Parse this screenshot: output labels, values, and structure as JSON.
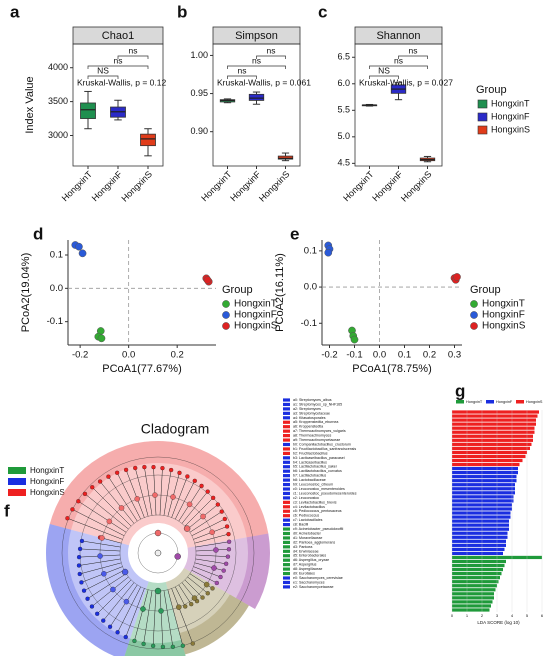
{
  "chart_data": [
    {
      "type": "box",
      "label": "a",
      "title": "Chao1",
      "ylabel": "Index Value",
      "categories": [
        "HongxinT",
        "HongxinF",
        "HongxinS"
      ],
      "colors": [
        "#1f8f4f",
        "#2b2bc8",
        "#e03c1a"
      ],
      "boxes": [
        {
          "min": 3100,
          "q1": 3250,
          "median": 3380,
          "q3": 3480,
          "max": 3650
        },
        {
          "min": 3230,
          "q1": 3270,
          "median": 3350,
          "q3": 3420,
          "max": 3520
        },
        {
          "min": 2700,
          "q1": 2850,
          "median": 2950,
          "q3": 3020,
          "max": 3100
        }
      ],
      "ylim": [
        2550,
        4350
      ],
      "yticks": [
        3000,
        3500,
        4000
      ],
      "brackets": [
        "ns",
        "ns",
        "NS"
      ],
      "test": "Kruskal-Wallis, p = 0.12"
    },
    {
      "type": "box",
      "label": "b",
      "title": "Simpson",
      "categories": [
        "HongxinT",
        "HongxinF",
        "HongxinS"
      ],
      "colors": [
        "#1f8f4f",
        "#2b2bc8",
        "#e03c1a"
      ],
      "boxes": [
        {
          "min": 0.938,
          "q1": 0.939,
          "median": 0.941,
          "q3": 0.942,
          "max": 0.943
        },
        {
          "min": 0.936,
          "q1": 0.941,
          "median": 0.944,
          "q3": 0.949,
          "max": 0.952
        },
        {
          "min": 0.862,
          "q1": 0.864,
          "median": 0.865,
          "q3": 0.868,
          "max": 0.872
        }
      ],
      "ylim": [
        0.855,
        1.015
      ],
      "yticks": [
        {
          "value": 0.9,
          "label": "0.90"
        },
        {
          "value": 0.95,
          "label": "0.95"
        },
        {
          "value": 1,
          "label": "1.00"
        }
      ],
      "brackets": [
        "ns",
        "ns",
        "ns"
      ],
      "test": "Kruskal-Wallis, p = 0.061"
    },
    {
      "type": "box",
      "label": "c",
      "title": "Shannon",
      "categories": [
        "HongxinT",
        "HongxinF",
        "HongxinS"
      ],
      "colors": [
        "#1f8f4f",
        "#2b2bc8",
        "#e03c1a"
      ],
      "boxes": [
        {
          "min": 5.58,
          "q1": 5.59,
          "median": 5.6,
          "q3": 5.6,
          "max": 5.61
        },
        {
          "min": 5.7,
          "q1": 5.82,
          "median": 5.9,
          "q3": 5.98,
          "max": 6.02
        },
        {
          "min": 4.53,
          "q1": 4.55,
          "median": 4.57,
          "q3": 4.6,
          "max": 4.63
        }
      ],
      "ylim": [
        4.45,
        6.75
      ],
      "yticks": [
        4.5,
        {
          "value": 5,
          "label": "5.0"
        },
        5.5,
        {
          "value": 6,
          "label": "6.0"
        },
        6.5
      ],
      "brackets": [
        "ns",
        "ns",
        "NS"
      ],
      "test": "Kruskal-Wallis, p = 0.027",
      "legend_title": "Group"
    },
    {
      "type": "scatter",
      "label": "d",
      "xlabel": "PCoA1(77.67%)",
      "ylabel": "PCoA2(19.04%)",
      "legend_title": "Group",
      "series": [
        {
          "name": "HongxinT",
          "color": "#33aa33",
          "x": [
            -0.115,
            -0.125,
            -0.112
          ],
          "y": [
            -0.128,
            -0.145,
            -0.15
          ]
        },
        {
          "name": "HongxinF",
          "color": "#2a5ad8",
          "x": [
            -0.22,
            -0.205,
            -0.19
          ],
          "y": [
            0.13,
            0.125,
            0.105
          ]
        },
        {
          "name": "HongxinS",
          "color": "#dd2222",
          "x": [
            0.32,
            0.33,
            0.325
          ],
          "y": [
            0.03,
            0.02,
            0.025
          ]
        }
      ],
      "xlim": [
        -0.25,
        0.36
      ],
      "ylim": [
        -0.17,
        0.145
      ],
      "xticks": [
        -0.2,
        {
          "value": 0,
          "label": "0.0"
        },
        0.2
      ],
      "yticks": [
        -0.1,
        {
          "value": 0,
          "label": "0.0"
        },
        0.1
      ]
    },
    {
      "type": "scatter",
      "label": "e",
      "xlabel": "PCoA1(78.75%)",
      "ylabel": "PCoA2(16.11%)",
      "legend_title": "Group",
      "series": [
        {
          "name": "HongxinT",
          "color": "#33aa33",
          "x": [
            -0.11,
            -0.105,
            -0.1
          ],
          "y": [
            -0.12,
            -0.135,
            -0.145
          ]
        },
        {
          "name": "HongxinF",
          "color": "#2a5ad8",
          "x": [
            -0.205,
            -0.2,
            -0.205
          ],
          "y": [
            0.115,
            0.105,
            0.095
          ]
        },
        {
          "name": "HongxinS",
          "color": "#dd2222",
          "x": [
            0.3,
            0.305,
            0.31
          ],
          "y": [
            0.025,
            0.02,
            0.028
          ]
        }
      ],
      "xlim": [
        -0.23,
        0.33
      ],
      "ylim": [
        -0.16,
        0.13
      ],
      "xticks": [
        -0.2,
        -0.1,
        {
          "value": 0,
          "label": "0.0"
        },
        0.1,
        0.2,
        0.3
      ],
      "yticks": [
        -0.1,
        {
          "value": 0,
          "label": "0.0"
        },
        0.1
      ]
    },
    {
      "type": "cladogram",
      "label": "f",
      "title": "Cladogram",
      "legend": [
        {
          "name": "HongxinT",
          "color": "#1f9a3a"
        },
        {
          "name": "HongxinF",
          "color": "#1a2ee0"
        },
        {
          "name": "HongxinS",
          "color": "#ee2020"
        }
      ],
      "taxa": [
        {
          "label": "a0: Streptomyces_albus",
          "color": "#1a2ee0"
        },
        {
          "label": "a1: Streptomyces_sp_NHF165",
          "color": "#1a2ee0"
        },
        {
          "label": "a2: Streptomyces",
          "color": "#1a2ee0"
        },
        {
          "label": "a3: Streptomycetaceae",
          "color": "#1a2ee0"
        },
        {
          "label": "a4: Kitasatosporales",
          "color": "#1a2ee0"
        },
        {
          "label": "a5: Kroppenstedtia_eburnea",
          "color": "#ee2020"
        },
        {
          "label": "a6: Kroppenstedtia",
          "color": "#ee2020"
        },
        {
          "label": "a7: Thermoactinomyces_vulgaris",
          "color": "#ee2020"
        },
        {
          "label": "a8: Thermoactinomyces",
          "color": "#ee2020"
        },
        {
          "label": "a9: Thermoactinomycetaceae",
          "color": "#ee2020"
        },
        {
          "label": "b0: Companilactobacillus_crustorum",
          "color": "#1a2ee0"
        },
        {
          "label": "b1: Fructilactobacillus_sanfranciscensis",
          "color": "#ee2020"
        },
        {
          "label": "b2: Fructilactobacillus",
          "color": "#ee2020"
        },
        {
          "label": "b3: Lacticaseibacillus_paracasei",
          "color": "#1a2ee0"
        },
        {
          "label": "b4: Lacticaseibacillus",
          "color": "#1a2ee0"
        },
        {
          "label": "b5: Lactilactobacillus_sakei",
          "color": "#1a2ee0"
        },
        {
          "label": "b6: Lactilactobacillus_curvatus",
          "color": "#1a2ee0"
        },
        {
          "label": "b7: Lactilactobacillus",
          "color": "#1a2ee0"
        },
        {
          "label": "b8: Lactobacillaceae",
          "color": "#1a2ee0"
        },
        {
          "label": "b9: Leuconostoc_citreum",
          "color": "#1a2ee0"
        },
        {
          "label": "c0: Leuconostoc_mesenteroides",
          "color": "#1a2ee0"
        },
        {
          "label": "c1: Leuconostoc_pseudomesenteroides",
          "color": "#1a2ee0"
        },
        {
          "label": "c2: Leuconostoc",
          "color": "#1a2ee0"
        },
        {
          "label": "c3: Levilactobacillus_brevis",
          "color": "#ee2020"
        },
        {
          "label": "c4: Levilactobacillus",
          "color": "#ee2020"
        },
        {
          "label": "c5: Pediococcus_pentosaceus",
          "color": "#ee2020"
        },
        {
          "label": "c6: Pediococcus",
          "color": "#ee2020"
        },
        {
          "label": "c7: Lactobacillales",
          "color": "#1a2ee0"
        },
        {
          "label": "c8: Bacilli",
          "color": "#1a2ee0"
        },
        {
          "label": "c9: Acinetobacter_pseudolwoffii",
          "color": "#1f9a3a"
        },
        {
          "label": "d0: Acinetobacter",
          "color": "#1f9a3a"
        },
        {
          "label": "d1: Moraxellaceae",
          "color": "#1f9a3a"
        },
        {
          "label": "d2: Pantoea_agglomerans",
          "color": "#1f9a3a"
        },
        {
          "label": "d3: Pantoea",
          "color": "#1f9a3a"
        },
        {
          "label": "d4: Erwiniaceae",
          "color": "#1f9a3a"
        },
        {
          "label": "d5: Enterobacterales",
          "color": "#1f9a3a"
        },
        {
          "label": "d6: Aspergillus_oryzae",
          "color": "#1f9a3a"
        },
        {
          "label": "d7: Aspergillus",
          "color": "#1f9a3a"
        },
        {
          "label": "d8: Aspergillaceae",
          "color": "#1f9a3a"
        },
        {
          "label": "d9: Eurotiales",
          "color": "#1f9a3a"
        },
        {
          "label": "e0: Saccharomyces_cerevisiae",
          "color": "#1a2ee0"
        },
        {
          "label": "e1: Saccharomyces",
          "color": "#1a2ee0"
        },
        {
          "label": "e2: Saccharomycetaceae",
          "color": "#1a2ee0"
        }
      ]
    },
    {
      "type": "lda",
      "label": "g",
      "xlabel": "LDA SCORE (log 10)",
      "series": [
        {
          "name": "HongxinT",
          "color": "#1f9a3a",
          "values": [
            6.0,
            3.6,
            3.5,
            3.4,
            3.3,
            3.2,
            3.1,
            3.0,
            2.9,
            2.8,
            2.8,
            2.7,
            2.6,
            2.5
          ]
        },
        {
          "name": "HongxinF",
          "color": "#1a2ee0",
          "values": [
            4.4,
            4.4,
            4.3,
            4.3,
            4.2,
            4.2,
            4.2,
            4.1,
            4.1,
            4.0,
            4.0,
            3.9,
            3.9,
            3.8,
            3.8,
            3.8,
            3.7,
            3.7,
            3.6,
            3.6,
            3.5,
            3.4
          ]
        },
        {
          "name": "HongxinS",
          "color": "#ee2020",
          "values": [
            5.8,
            5.7,
            5.6,
            5.6,
            5.5,
            5.5,
            5.4,
            5.4,
            5.3,
            5.2,
            5.0,
            4.9,
            4.7,
            4.5
          ]
        }
      ],
      "draw_order": [
        2,
        1,
        0
      ],
      "xlim": [
        0,
        6.2
      ],
      "xticks": [
        0,
        1,
        2,
        3,
        4,
        5,
        6
      ]
    }
  ]
}
